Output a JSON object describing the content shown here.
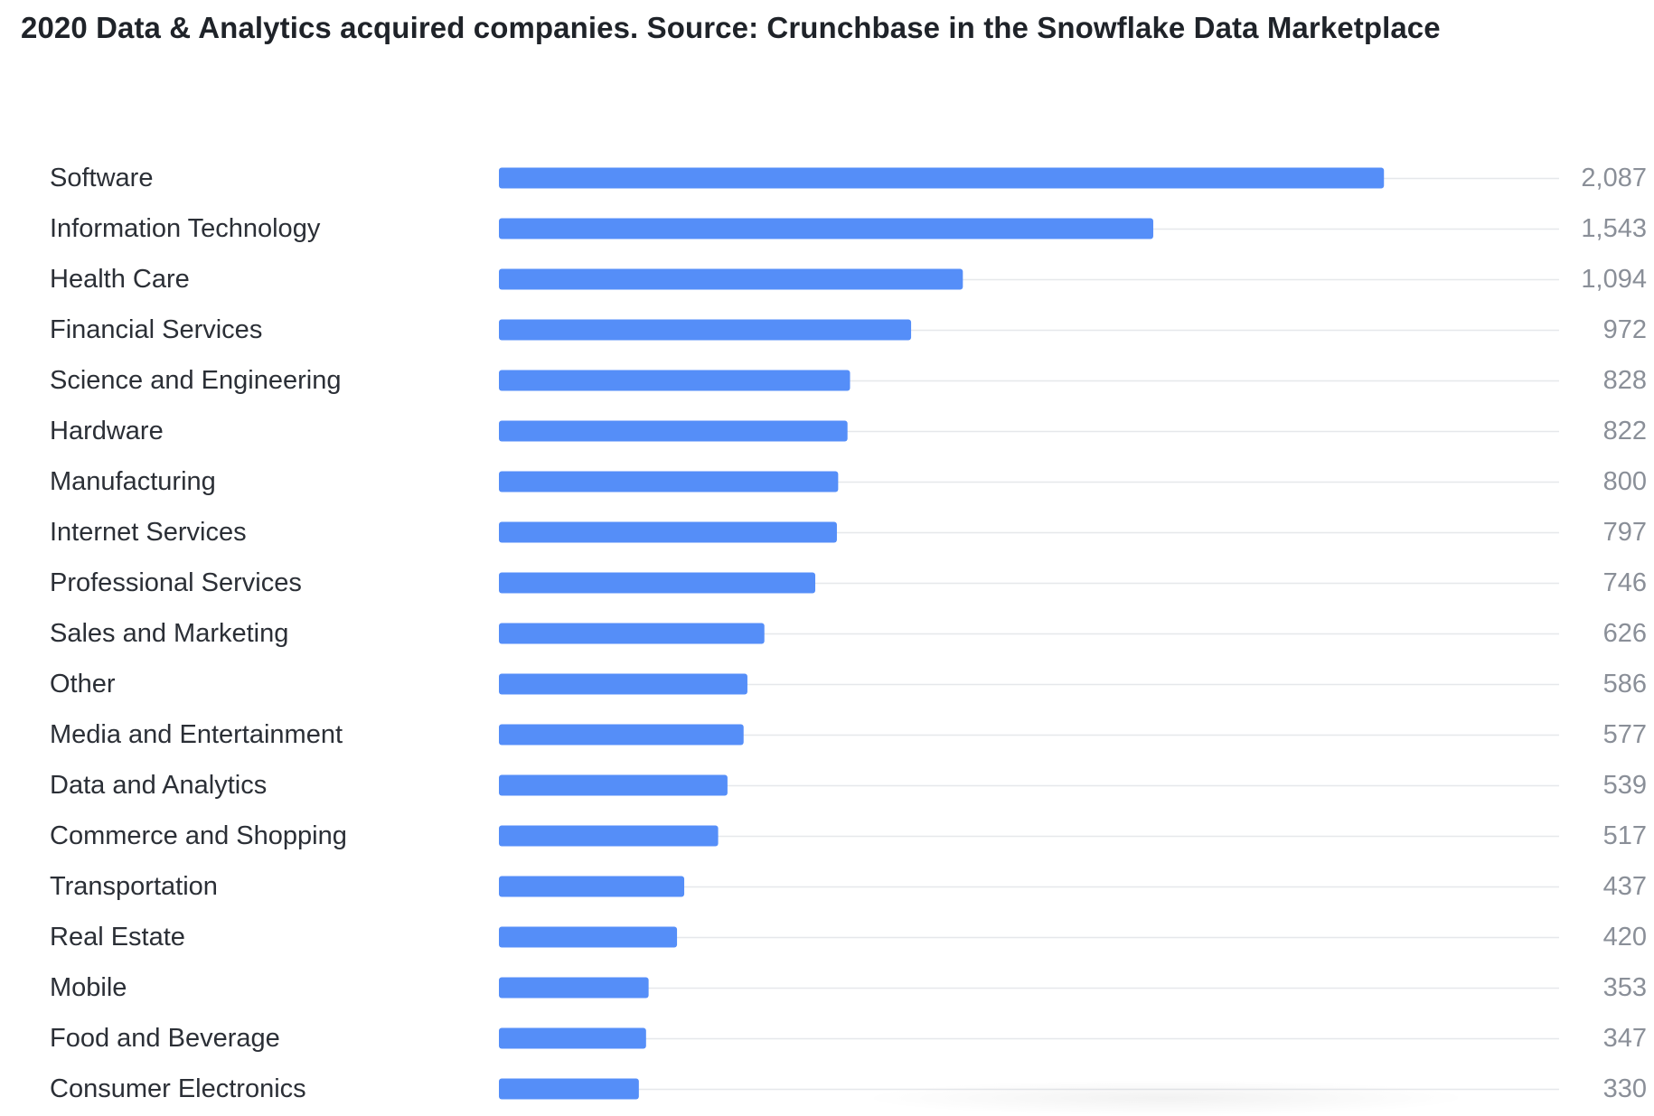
{
  "chart_data": {
    "type": "bar",
    "orientation": "horizontal",
    "title": "2020 Data & Analytics acquired companies. Source: Crunchbase in the Snowflake Data Marketplace",
    "categories": [
      "Software",
      "Information Technology",
      "Health Care",
      "Financial Services",
      "Science and Engineering",
      "Hardware",
      "Manufacturing",
      "Internet Services",
      "Professional Services",
      "Sales and Marketing",
      "Other",
      "Media and Entertainment",
      "Data and Analytics",
      "Commerce and Shopping",
      "Transportation",
      "Real Estate",
      "Mobile",
      "Food and Beverage",
      "Consumer Electronics"
    ],
    "values": [
      2087,
      1543,
      1094,
      972,
      828,
      822,
      800,
      797,
      746,
      626,
      586,
      577,
      539,
      517,
      437,
      420,
      353,
      347,
      330
    ],
    "value_labels": [
      "2,087",
      "1,543",
      "1,094",
      "972",
      "828",
      "822",
      "800",
      "797",
      "746",
      "626",
      "586",
      "577",
      "539",
      "517",
      "437",
      "420",
      "353",
      "347",
      "330"
    ],
    "xlim": [
      0,
      2500
    ],
    "grid": true,
    "legend": "none",
    "colors": {
      "bar": "#558ef8",
      "grid": "#e6e8eb",
      "category_text": "#2b2f36",
      "value_text": "#8a8f98"
    }
  }
}
